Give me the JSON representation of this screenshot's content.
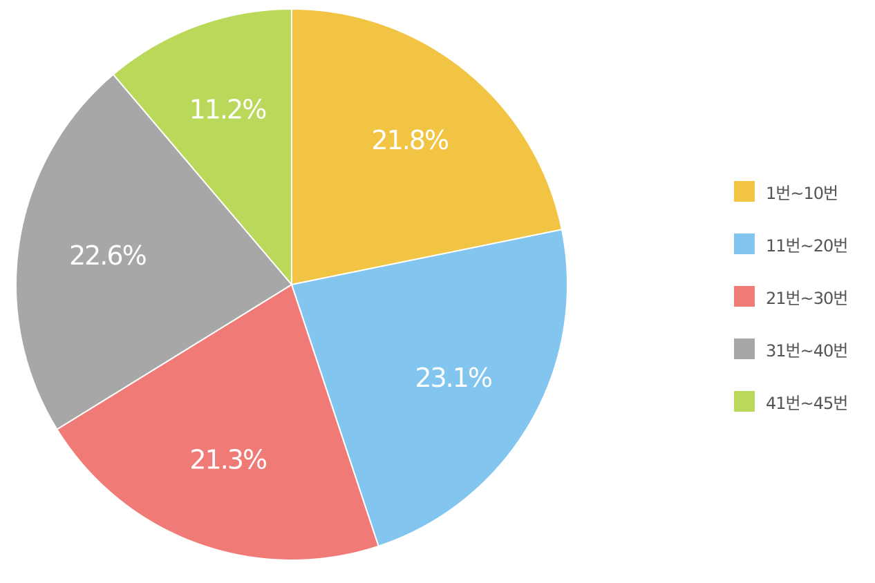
{
  "chart_data": {
    "type": "pie",
    "title": "",
    "categories": [
      "1번~10번",
      "11번~20번",
      "21번~30번",
      "31번~40번",
      "41번~45번"
    ],
    "values": [
      21.8,
      23.1,
      21.3,
      22.6,
      11.2
    ],
    "value_labels": [
      "21.8%",
      "23.1%",
      "21.3%",
      "22.6%",
      "11.2%"
    ],
    "colors": [
      "#F1C443",
      "#82C5EF",
      "#F07A76",
      "#A7A7A7",
      "#BAD85A"
    ],
    "start_angle": "12 o'clock",
    "direction": "clockwise",
    "legend_position": "right"
  }
}
